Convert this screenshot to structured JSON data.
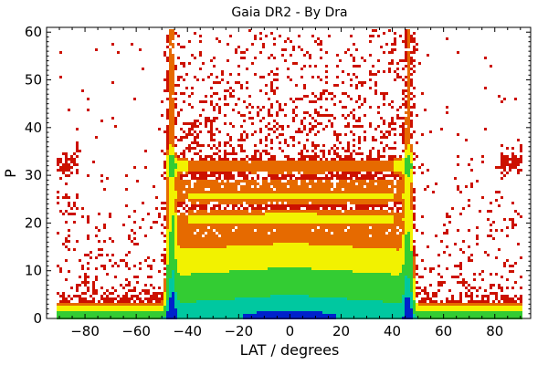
{
  "chart_data": {
    "type": "heatmap",
    "title": "Gaia DR2 -  By Dra",
    "xlabel": "LAT / degrees",
    "ylabel": "P",
    "xlim": [
      -95,
      94
    ],
    "ylim": [
      0,
      61
    ],
    "x_ticks": [
      -80,
      -60,
      -40,
      -20,
      0,
      20,
      40,
      60,
      80
    ],
    "x_tick_labels": [
      "−80",
      "−60",
      "−40",
      "−20",
      "0",
      "20",
      "40",
      "60",
      "80"
    ],
    "y_ticks": [
      0,
      10,
      20,
      30,
      40,
      50,
      60
    ],
    "y_tick_labels": [
      "0",
      "10",
      "20",
      "30",
      "40",
      "50",
      "60"
    ],
    "grid": false,
    "legend": "none",
    "density_colors": {
      "lowest": "#cc1100",
      "low": "#e66a00",
      "medium": "#f2f200",
      "high": "#33cc33",
      "higher": "#00c8a0",
      "highest": "#0022cc"
    },
    "density_features": [
      {
        "name": "dense wall",
        "lat": -46.5,
        "p_range": [
          0,
          57
        ]
      },
      {
        "name": "dense wall",
        "lat": 46.5,
        "p_range": [
          0,
          60
        ]
      },
      {
        "name": "ridge",
        "lat_range": [
          -46,
          46
        ],
        "p": 32
      },
      {
        "name": "ridge",
        "lat_range": [
          -40,
          40
        ],
        "p": 25.5
      },
      {
        "name": "ridge",
        "lat_range": [
          -40,
          40
        ],
        "p": 21
      },
      {
        "name": "ridge",
        "lat_range": [
          -90,
          -80
        ],
        "p": 32.5
      },
      {
        "name": "ridge",
        "lat_range": [
          80,
          90
        ],
        "p": 32.5
      }
    ]
  }
}
